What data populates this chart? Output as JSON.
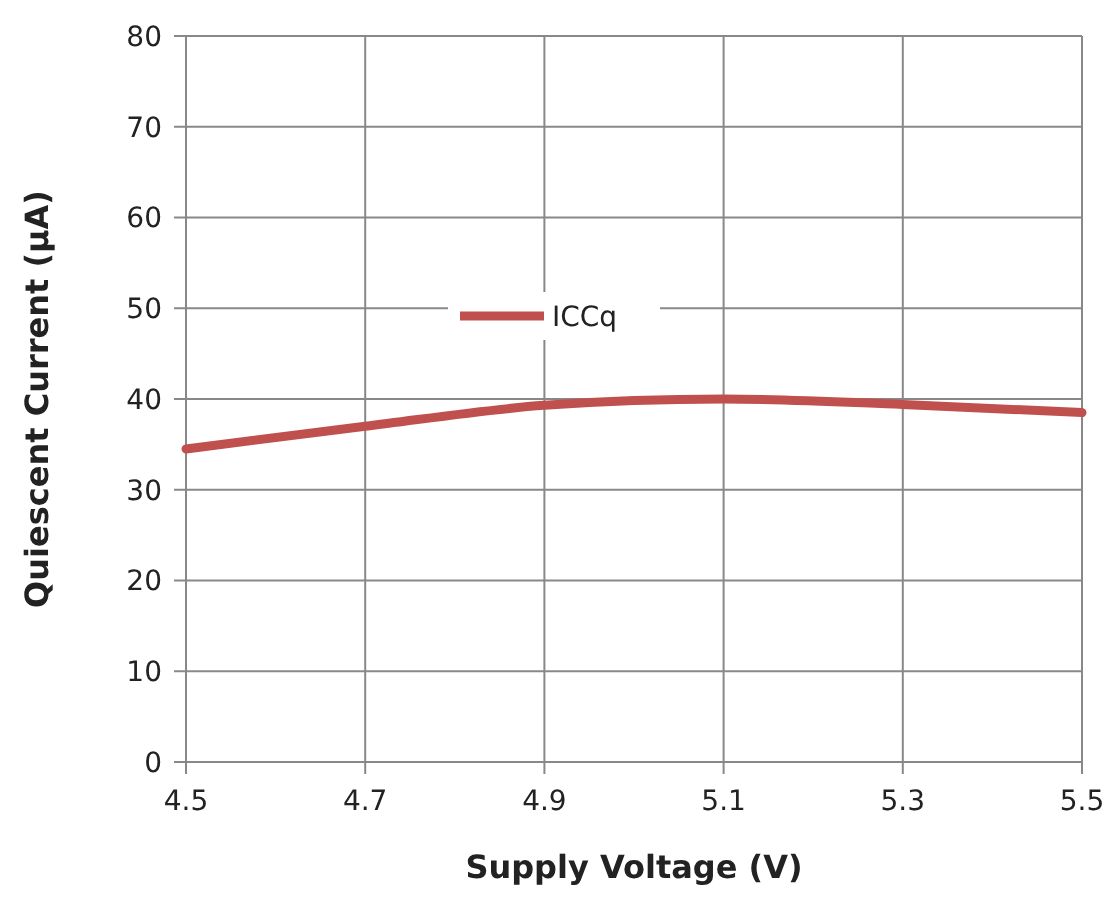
{
  "chart_data": {
    "type": "line",
    "xlabel": "Supply Voltage (V)",
    "ylabel": "Quiescent Current (µA)",
    "x": [
      4.5,
      4.7,
      4.9,
      5.1,
      5.3,
      5.5
    ],
    "series": [
      {
        "name": "ICCq",
        "color": "#c0504d",
        "values": [
          34.5,
          37,
          39.3,
          40,
          39.4,
          38.5
        ]
      }
    ],
    "xlim": [
      4.5,
      5.5
    ],
    "xticks": [
      {
        "value": 4.5,
        "label": "4.5"
      },
      {
        "value": 4.7,
        "label": "4.7"
      },
      {
        "value": 4.9,
        "label": "4.9"
      },
      {
        "value": 5.1,
        "label": "5.1"
      },
      {
        "value": 5.3,
        "label": "5.3"
      },
      {
        "value": 5.5,
        "label": "5.5"
      }
    ],
    "ylim": [
      0,
      80
    ],
    "yticks": [
      0,
      10,
      20,
      30,
      40,
      50,
      60,
      70,
      80
    ],
    "grid": true,
    "legend": "top",
    "marker": "none",
    "line_style": "solid"
  }
}
